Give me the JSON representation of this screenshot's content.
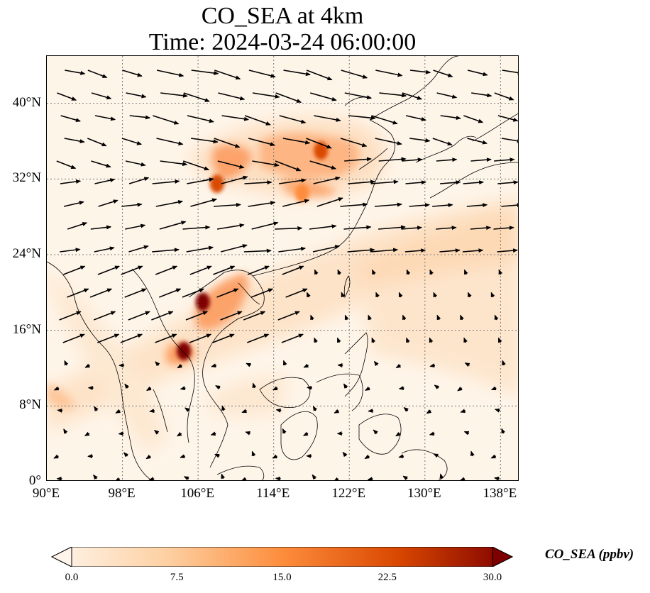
{
  "title": {
    "line1": "CO_SEA at 4km",
    "line2": "Time: 2024-03-24 06:00:00"
  },
  "map": {
    "lon_range": [
      90,
      140
    ],
    "lat_range": [
      0,
      45
    ],
    "lat_ticks": [
      {
        "value": 0,
        "label": "0°"
      },
      {
        "value": 8,
        "label": "8°N"
      },
      {
        "value": 16,
        "label": "16°N"
      },
      {
        "value": 24,
        "label": "24°N"
      },
      {
        "value": 32,
        "label": "32°N"
      },
      {
        "value": 40,
        "label": "40°N"
      }
    ],
    "lon_ticks": [
      {
        "value": 90,
        "label": "90°E"
      },
      {
        "value": 98,
        "label": "98°E"
      },
      {
        "value": 106,
        "label": "106°E"
      },
      {
        "value": 114,
        "label": "114°E"
      },
      {
        "value": 122,
        "label": "122°E"
      },
      {
        "value": 130,
        "label": "130°E"
      },
      {
        "value": 138,
        "label": "138°E"
      }
    ],
    "gridlines": true,
    "plume_hotspots": [
      {
        "lon": 106.5,
        "lat": 19.0,
        "ppbv": 28
      },
      {
        "lon": 104.5,
        "lat": 13.8,
        "ppbv": 27
      },
      {
        "lon": 108.0,
        "lat": 31.5,
        "ppbv": 24
      },
      {
        "lon": 119.0,
        "lat": 35.0,
        "ppbv": 22
      },
      {
        "lon": 117.0,
        "lat": 30.5,
        "ppbv": 18
      }
    ]
  },
  "colorbar": {
    "label": "CO_SEA (ppbv)",
    "min": 0,
    "max": 30,
    "ticks": [
      {
        "value": 0,
        "label": "0.0"
      },
      {
        "value": 7.5,
        "label": "7.5"
      },
      {
        "value": 15,
        "label": "15.0"
      },
      {
        "value": 22.5,
        "label": "22.5"
      },
      {
        "value": 30,
        "label": "30.0"
      }
    ],
    "colors": [
      "#fff5eb",
      "#fdd0a2",
      "#fd8d3c",
      "#d94801",
      "#7f0000"
    ]
  }
}
